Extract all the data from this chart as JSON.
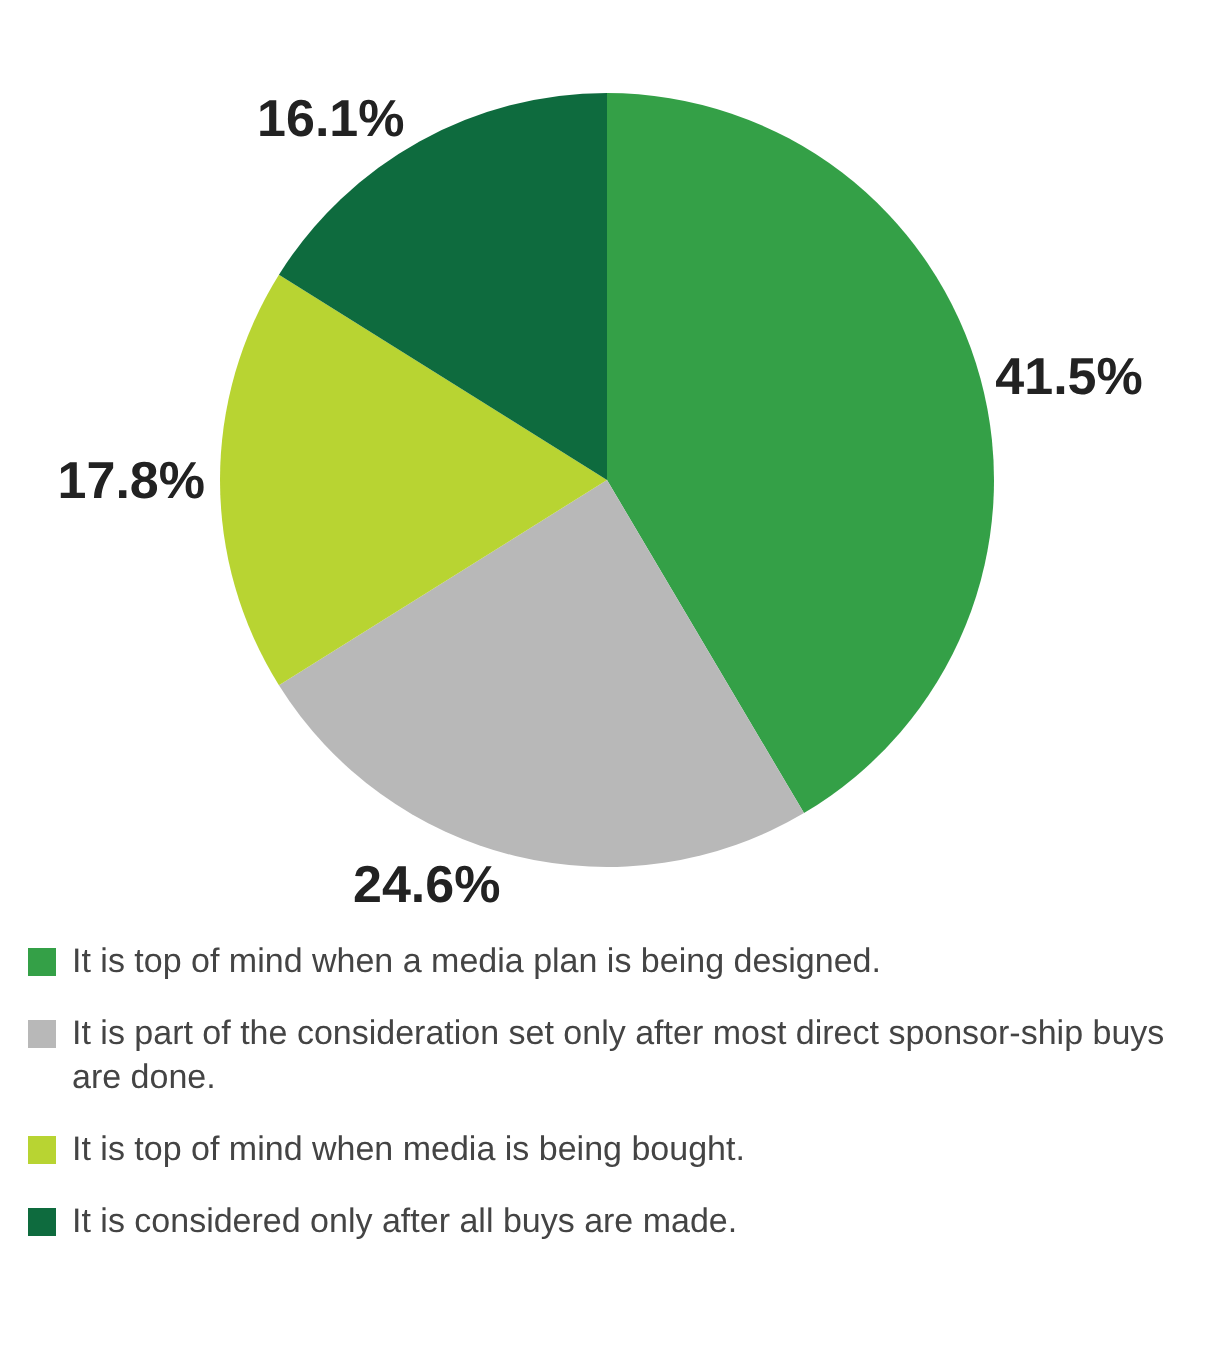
{
  "chart_data": {
    "type": "pie",
    "categories": [
      "It is top of mind when a media plan is being designed.",
      "It is part of the consideration set only after most direct sponsor-ship buys are done.",
      "It is top of mind when media is being bought.",
      "It is considered only after all buys are made."
    ],
    "values": [
      41.5,
      24.6,
      17.8,
      16.1
    ],
    "colors": [
      "#34a047",
      "#b8b8b8",
      "#b8d432",
      "#0e6b3e"
    ],
    "value_labels": [
      "41.5%",
      "24.6%",
      "17.8%",
      "16.1%"
    ],
    "legend": "bottom"
  }
}
